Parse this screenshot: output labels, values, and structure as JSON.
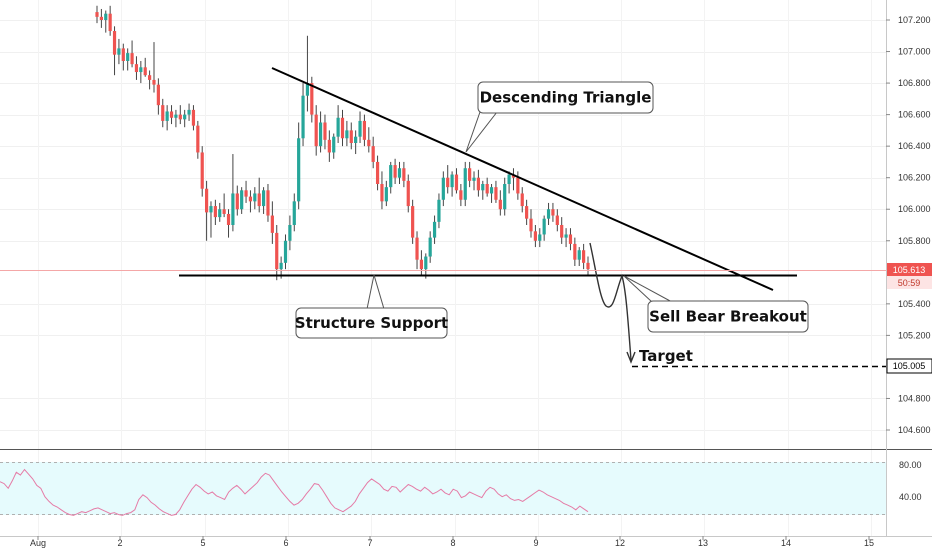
{
  "chart_data": {
    "type": "candlestick",
    "y_axis": {
      "ticks": [
        "107.200",
        "107.000",
        "106.800",
        "106.600",
        "106.400",
        "106.200",
        "106.000",
        "105.800",
        "105.400",
        "105.200",
        "104.800",
        "104.600"
      ],
      "ylim": [
        104.5,
        107.3
      ]
    },
    "x_axis": {
      "ticks": [
        "Aug",
        "2",
        "5",
        "6",
        "7",
        "8",
        "9",
        "12",
        "13",
        "14",
        "15"
      ]
    },
    "price_tags": {
      "current_price": "105.613",
      "countdown": "50:59",
      "target_price": "105.005"
    },
    "colors": {
      "up": "#26a69a",
      "down": "#ef5350",
      "wick": "#444444",
      "trendline": "#000000",
      "rsi_line": "#e57ba6",
      "rsi_fill": "#e6fbfd",
      "rsi_band": "#b0b0b0"
    },
    "annotations": {
      "descending_triangle": "Descending Triangle",
      "structure_support": "Structure Support",
      "sell_bear_breakout": "Sell Bear Breakout",
      "target": "Target"
    },
    "trendlines": {
      "resistance": {
        "from": [
          3.8,
          106.88
        ],
        "to": [
          9.0,
          105.5
        ]
      },
      "support": {
        "from": [
          2.2,
          105.6
        ],
        "to": [
          9.0,
          105.6
        ]
      },
      "target_level": 105.005
    },
    "projection_path": [
      [
        6.95,
        105.78
      ],
      [
        7.05,
        105.4
      ],
      [
        7.15,
        105.6
      ],
      [
        7.25,
        105.3
      ],
      [
        7.3,
        105.05
      ]
    ],
    "rsi": {
      "ticks": [
        "80.00",
        "40.00"
      ],
      "overbought": 70,
      "oversold": 30,
      "values": [
        63,
        61,
        56,
        64,
        73,
        70,
        76,
        71,
        66,
        59,
        56,
        47,
        42,
        38,
        36,
        33,
        30,
        28,
        27,
        29,
        31,
        30,
        32,
        34,
        35,
        33,
        31,
        29,
        30,
        28,
        27,
        29,
        30,
        33,
        44,
        49,
        46,
        41,
        38,
        34,
        31,
        29,
        27,
        28,
        33,
        41,
        48,
        55,
        60,
        57,
        53,
        50,
        52,
        48,
        46,
        44,
        52,
        56,
        59,
        55,
        50,
        54,
        58,
        62,
        68,
        72,
        70,
        64,
        58,
        52,
        47,
        42,
        38,
        40,
        44,
        50,
        55,
        61,
        60,
        54,
        47,
        40,
        35,
        33,
        31,
        34,
        37,
        42,
        50,
        56,
        62,
        66,
        63,
        60,
        55,
        53,
        58,
        57,
        52,
        56,
        60,
        58,
        55,
        53,
        57,
        54,
        50,
        52,
        55,
        51,
        49,
        55,
        53,
        46,
        48,
        52,
        50,
        48,
        46,
        53,
        57,
        55,
        50,
        47,
        49,
        45,
        43,
        44,
        42,
        45,
        48,
        51,
        54,
        52,
        49,
        47,
        45,
        43,
        40,
        38,
        36,
        33,
        37,
        34,
        31
      ]
    },
    "candles": [
      {
        "o": 107.25,
        "h": 107.29,
        "l": 107.18,
        "c": 107.22
      },
      {
        "o": 107.22,
        "h": 107.27,
        "l": 107.15,
        "c": 107.2
      },
      {
        "o": 107.2,
        "h": 107.26,
        "l": 107.12,
        "c": 107.24
      },
      {
        "o": 107.24,
        "h": 107.29,
        "l": 107.1,
        "c": 107.13
      },
      {
        "o": 107.13,
        "h": 107.16,
        "l": 106.85,
        "c": 106.98
      },
      {
        "o": 106.98,
        "h": 107.08,
        "l": 106.92,
        "c": 107.02
      },
      {
        "o": 107.02,
        "h": 107.05,
        "l": 106.88,
        "c": 106.94
      },
      {
        "o": 106.94,
        "h": 107.02,
        "l": 106.88,
        "c": 106.99
      },
      {
        "o": 106.99,
        "h": 107.07,
        "l": 106.9,
        "c": 106.92
      },
      {
        "o": 106.92,
        "h": 106.97,
        "l": 106.82,
        "c": 106.87
      },
      {
        "o": 106.87,
        "h": 106.94,
        "l": 106.8,
        "c": 106.9
      },
      {
        "o": 106.9,
        "h": 106.96,
        "l": 106.84,
        "c": 106.85
      },
      {
        "o": 106.85,
        "h": 106.88,
        "l": 106.76,
        "c": 106.82
      },
      {
        "o": 106.82,
        "h": 107.06,
        "l": 106.74,
        "c": 106.79
      },
      {
        "o": 106.79,
        "h": 106.83,
        "l": 106.6,
        "c": 106.66
      },
      {
        "o": 106.66,
        "h": 106.7,
        "l": 106.52,
        "c": 106.56
      },
      {
        "o": 106.56,
        "h": 106.66,
        "l": 106.5,
        "c": 106.62
      },
      {
        "o": 106.62,
        "h": 106.66,
        "l": 106.54,
        "c": 106.58
      },
      {
        "o": 106.58,
        "h": 106.63,
        "l": 106.52,
        "c": 106.6
      },
      {
        "o": 106.6,
        "h": 106.66,
        "l": 106.54,
        "c": 106.57
      },
      {
        "o": 106.57,
        "h": 106.63,
        "l": 106.52,
        "c": 106.6
      },
      {
        "o": 106.6,
        "h": 106.67,
        "l": 106.56,
        "c": 106.63
      },
      {
        "o": 106.63,
        "h": 106.66,
        "l": 106.5,
        "c": 106.53
      },
      {
        "o": 106.53,
        "h": 106.56,
        "l": 106.32,
        "c": 106.36
      },
      {
        "o": 106.36,
        "h": 106.4,
        "l": 106.08,
        "c": 106.13
      },
      {
        "o": 106.13,
        "h": 106.18,
        "l": 105.8,
        "c": 105.98
      },
      {
        "o": 105.98,
        "h": 106.05,
        "l": 105.82,
        "c": 106.02
      },
      {
        "o": 106.02,
        "h": 106.06,
        "l": 105.9,
        "c": 105.95
      },
      {
        "o": 105.95,
        "h": 106.04,
        "l": 105.92,
        "c": 106.0
      },
      {
        "o": 106.0,
        "h": 106.1,
        "l": 105.95,
        "c": 105.97
      },
      {
        "o": 105.97,
        "h": 106.0,
        "l": 105.82,
        "c": 105.9
      },
      {
        "o": 105.9,
        "h": 106.35,
        "l": 105.86,
        "c": 106.1
      },
      {
        "o": 106.1,
        "h": 106.15,
        "l": 105.96,
        "c": 106.0
      },
      {
        "o": 106.0,
        "h": 106.14,
        "l": 105.97,
        "c": 106.12
      },
      {
        "o": 106.12,
        "h": 106.18,
        "l": 106.04,
        "c": 106.08
      },
      {
        "o": 106.08,
        "h": 106.12,
        "l": 105.98,
        "c": 106.05
      },
      {
        "o": 106.05,
        "h": 106.14,
        "l": 106.0,
        "c": 106.1
      },
      {
        "o": 106.1,
        "h": 106.2,
        "l": 105.98,
        "c": 106.02
      },
      {
        "o": 106.02,
        "h": 106.14,
        "l": 105.97,
        "c": 106.12
      },
      {
        "o": 106.12,
        "h": 106.16,
        "l": 105.92,
        "c": 105.96
      },
      {
        "o": 105.96,
        "h": 106.05,
        "l": 105.78,
        "c": 105.85
      },
      {
        "o": 105.85,
        "h": 105.9,
        "l": 105.55,
        "c": 105.62
      },
      {
        "o": 105.62,
        "h": 105.7,
        "l": 105.56,
        "c": 105.66
      },
      {
        "o": 105.66,
        "h": 105.84,
        "l": 105.62,
        "c": 105.8
      },
      {
        "o": 105.8,
        "h": 105.96,
        "l": 105.74,
        "c": 105.9
      },
      {
        "o": 105.9,
        "h": 106.1,
        "l": 105.86,
        "c": 106.05
      },
      {
        "o": 106.05,
        "h": 106.55,
        "l": 106.0,
        "c": 106.45
      },
      {
        "o": 106.45,
        "h": 106.8,
        "l": 106.4,
        "c": 106.72
      },
      {
        "o": 106.72,
        "h": 107.1,
        "l": 106.62,
        "c": 106.8
      },
      {
        "o": 106.8,
        "h": 106.84,
        "l": 106.55,
        "c": 106.6
      },
      {
        "o": 106.6,
        "h": 106.66,
        "l": 106.34,
        "c": 106.4
      },
      {
        "o": 106.4,
        "h": 106.62,
        "l": 106.36,
        "c": 106.55
      },
      {
        "o": 106.55,
        "h": 106.6,
        "l": 106.38,
        "c": 106.44
      },
      {
        "o": 106.44,
        "h": 106.5,
        "l": 106.3,
        "c": 106.36
      },
      {
        "o": 106.36,
        "h": 106.48,
        "l": 106.32,
        "c": 106.46
      },
      {
        "o": 106.46,
        "h": 106.66,
        "l": 106.42,
        "c": 106.58
      },
      {
        "o": 106.58,
        "h": 106.63,
        "l": 106.4,
        "c": 106.45
      },
      {
        "o": 106.45,
        "h": 106.56,
        "l": 106.4,
        "c": 106.5
      },
      {
        "o": 106.5,
        "h": 106.55,
        "l": 106.38,
        "c": 106.42
      },
      {
        "o": 106.42,
        "h": 106.5,
        "l": 106.35,
        "c": 106.46
      },
      {
        "o": 106.46,
        "h": 106.62,
        "l": 106.42,
        "c": 106.56
      },
      {
        "o": 106.56,
        "h": 106.6,
        "l": 106.4,
        "c": 106.44
      },
      {
        "o": 106.44,
        "h": 106.52,
        "l": 106.36,
        "c": 106.4
      },
      {
        "o": 106.4,
        "h": 106.46,
        "l": 106.26,
        "c": 106.3
      },
      {
        "o": 106.3,
        "h": 106.34,
        "l": 106.12,
        "c": 106.16
      },
      {
        "o": 106.16,
        "h": 106.24,
        "l": 106.0,
        "c": 106.05
      },
      {
        "o": 106.05,
        "h": 106.18,
        "l": 106.02,
        "c": 106.14
      },
      {
        "o": 106.14,
        "h": 106.3,
        "l": 106.1,
        "c": 106.28
      },
      {
        "o": 106.28,
        "h": 106.32,
        "l": 106.16,
        "c": 106.2
      },
      {
        "o": 106.2,
        "h": 106.3,
        "l": 106.16,
        "c": 106.26
      },
      {
        "o": 106.26,
        "h": 106.3,
        "l": 106.14,
        "c": 106.18
      },
      {
        "o": 106.18,
        "h": 106.22,
        "l": 105.98,
        "c": 106.02
      },
      {
        "o": 106.02,
        "h": 106.06,
        "l": 105.78,
        "c": 105.82
      },
      {
        "o": 105.82,
        "h": 105.86,
        "l": 105.62,
        "c": 105.68
      },
      {
        "o": 105.68,
        "h": 105.74,
        "l": 105.58,
        "c": 105.62
      },
      {
        "o": 105.62,
        "h": 105.72,
        "l": 105.56,
        "c": 105.7
      },
      {
        "o": 105.7,
        "h": 105.86,
        "l": 105.66,
        "c": 105.82
      },
      {
        "o": 105.82,
        "h": 105.96,
        "l": 105.78,
        "c": 105.92
      },
      {
        "o": 105.92,
        "h": 106.1,
        "l": 105.88,
        "c": 106.06
      },
      {
        "o": 106.06,
        "h": 106.24,
        "l": 106.02,
        "c": 106.2
      },
      {
        "o": 106.2,
        "h": 106.28,
        "l": 106.1,
        "c": 106.14
      },
      {
        "o": 106.14,
        "h": 106.24,
        "l": 106.08,
        "c": 106.22
      },
      {
        "o": 106.22,
        "h": 106.26,
        "l": 106.1,
        "c": 106.12
      },
      {
        "o": 106.12,
        "h": 106.16,
        "l": 106.02,
        "c": 106.06
      },
      {
        "o": 106.06,
        "h": 106.3,
        "l": 106.02,
        "c": 106.26
      },
      {
        "o": 106.26,
        "h": 106.3,
        "l": 106.14,
        "c": 106.18
      },
      {
        "o": 106.18,
        "h": 106.24,
        "l": 106.12,
        "c": 106.2
      },
      {
        "o": 106.2,
        "h": 106.25,
        "l": 106.08,
        "c": 106.12
      },
      {
        "o": 106.12,
        "h": 106.18,
        "l": 106.06,
        "c": 106.16
      },
      {
        "o": 106.16,
        "h": 106.2,
        "l": 106.08,
        "c": 106.1
      },
      {
        "o": 106.1,
        "h": 106.16,
        "l": 106.04,
        "c": 106.14
      },
      {
        "o": 106.14,
        "h": 106.18,
        "l": 106.04,
        "c": 106.06
      },
      {
        "o": 106.06,
        "h": 106.12,
        "l": 105.96,
        "c": 106.0
      },
      {
        "o": 106.0,
        "h": 106.2,
        "l": 105.96,
        "c": 106.16
      },
      {
        "o": 106.16,
        "h": 106.24,
        "l": 106.1,
        "c": 106.22
      },
      {
        "o": 106.22,
        "h": 106.26,
        "l": 106.12,
        "c": 106.2
      },
      {
        "o": 106.2,
        "h": 106.24,
        "l": 106.06,
        "c": 106.1
      },
      {
        "o": 106.1,
        "h": 106.14,
        "l": 105.98,
        "c": 106.02
      },
      {
        "o": 106.02,
        "h": 106.06,
        "l": 105.9,
        "c": 105.94
      },
      {
        "o": 105.94,
        "h": 106.0,
        "l": 105.82,
        "c": 105.86
      },
      {
        "o": 105.86,
        "h": 105.9,
        "l": 105.76,
        "c": 105.8
      },
      {
        "o": 105.8,
        "h": 105.88,
        "l": 105.76,
        "c": 105.84
      },
      {
        "o": 105.84,
        "h": 105.96,
        "l": 105.8,
        "c": 105.94
      },
      {
        "o": 105.94,
        "h": 106.04,
        "l": 105.9,
        "c": 106.0
      },
      {
        "o": 106.0,
        "h": 106.04,
        "l": 105.92,
        "c": 105.96
      },
      {
        "o": 105.96,
        "h": 106.0,
        "l": 105.86,
        "c": 105.9
      },
      {
        "o": 105.9,
        "h": 105.95,
        "l": 105.78,
        "c": 105.82
      },
      {
        "o": 105.82,
        "h": 105.88,
        "l": 105.76,
        "c": 105.84
      },
      {
        "o": 105.84,
        "h": 105.88,
        "l": 105.74,
        "c": 105.78
      },
      {
        "o": 105.78,
        "h": 105.82,
        "l": 105.64,
        "c": 105.68
      },
      {
        "o": 105.68,
        "h": 105.76,
        "l": 105.64,
        "c": 105.74
      },
      {
        "o": 105.74,
        "h": 105.78,
        "l": 105.62,
        "c": 105.66
      },
      {
        "o": 105.66,
        "h": 105.7,
        "l": 105.58,
        "c": 105.62
      }
    ]
  }
}
